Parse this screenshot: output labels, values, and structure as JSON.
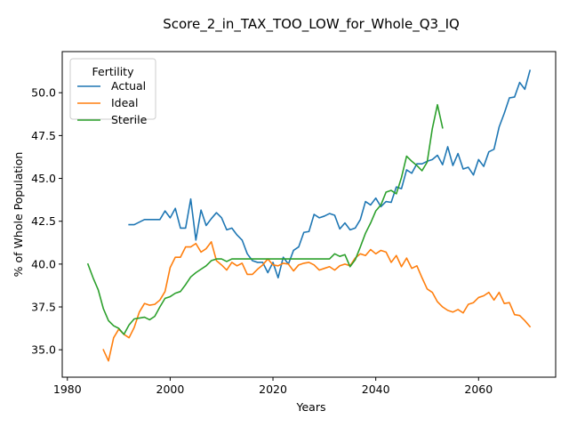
{
  "chart_data": {
    "type": "line",
    "title": "Score_2_in_TAX_TOO_LOW_for_Whole_Q3_IQ",
    "xlabel": "Years",
    "ylabel": "% of Whole Population",
    "xlim": [
      1979,
      2075
    ],
    "ylim": [
      33.4,
      52.4
    ],
    "xticks": [
      1980,
      2000,
      2020,
      2040,
      2060
    ],
    "yticks": [
      35.0,
      37.5,
      40.0,
      42.5,
      45.0,
      47.5,
      50.0
    ],
    "xtick_labels": [
      "1980",
      "2000",
      "2020",
      "2040",
      "2060"
    ],
    "ytick_labels": [
      "35.0",
      "37.5",
      "40.0",
      "42.5",
      "45.0",
      "47.5",
      "50.0"
    ],
    "grid": false,
    "legend": {
      "title": "Fertility",
      "placement": "upper-left"
    },
    "series": [
      {
        "name": "Actual",
        "color": "#1f77b4",
        "x": [
          1992,
          1993,
          1994,
          1995,
          1996,
          1997,
          1998,
          1999,
          2000,
          2001,
          2002,
          2003,
          2004,
          2005,
          2006,
          2007,
          2008,
          2009,
          2010,
          2011,
          2012,
          2013,
          2014,
          2015,
          2016,
          2017,
          2018,
          2019,
          2020,
          2021,
          2022,
          2023,
          2024,
          2025,
          2026,
          2027,
          2028,
          2029,
          2030,
          2031,
          2032,
          2033,
          2034,
          2035,
          2036,
          2037,
          2038,
          2039,
          2040,
          2041,
          2042,
          2043,
          2044,
          2045,
          2046,
          2047,
          2048,
          2049,
          2050,
          2051,
          2052,
          2053,
          2054,
          2055,
          2056,
          2057,
          2058,
          2059,
          2060,
          2061,
          2062,
          2063,
          2064,
          2065,
          2066,
          2067,
          2068,
          2069,
          2070
        ],
        "values": [
          42.3,
          42.3,
          42.45,
          42.6,
          42.6,
          42.6,
          42.6,
          43.1,
          42.7,
          43.25,
          42.1,
          42.1,
          43.8,
          41.4,
          43.15,
          42.25,
          42.65,
          43.0,
          42.7,
          42.0,
          42.1,
          41.7,
          41.4,
          40.6,
          40.2,
          40.1,
          40.1,
          39.5,
          40.1,
          39.2,
          40.4,
          40.0,
          40.8,
          41.0,
          41.85,
          41.9,
          42.9,
          42.7,
          42.8,
          42.95,
          42.85,
          42.05,
          42.4,
          42.0,
          42.1,
          42.6,
          43.65,
          43.45,
          43.85,
          43.35,
          43.65,
          43.6,
          44.5,
          44.4,
          45.5,
          45.3,
          45.85,
          45.85,
          46.0,
          46.1,
          46.35,
          45.8,
          46.85,
          45.75,
          46.45,
          45.55,
          45.65,
          45.2,
          46.1,
          45.7,
          46.55,
          46.7,
          48.0,
          48.8,
          49.7,
          49.75,
          50.6,
          50.2,
          51.3
        ]
      },
      {
        "name": "Ideal",
        "color": "#ff7f0e",
        "x": [
          1987,
          1988,
          1989,
          1990,
          1991,
          1992,
          1993,
          1994,
          1995,
          1996,
          1997,
          1998,
          1999,
          2000,
          2001,
          2002,
          2003,
          2004,
          2005,
          2006,
          2007,
          2008,
          2009,
          2010,
          2011,
          2012,
          2013,
          2014,
          2015,
          2016,
          2017,
          2018,
          2019,
          2020,
          2021,
          2022,
          2023,
          2024,
          2025,
          2026,
          2027,
          2028,
          2029,
          2030,
          2031,
          2032,
          2033,
          2034,
          2035,
          2036,
          2037,
          2038,
          2039,
          2040,
          2041,
          2042,
          2043,
          2044,
          2045,
          2046,
          2047,
          2048,
          2049,
          2050,
          2051,
          2052,
          2053,
          2054,
          2055,
          2056,
          2057,
          2058,
          2059,
          2060,
          2061,
          2062,
          2063,
          2064,
          2065,
          2066,
          2067,
          2068,
          2069,
          2070
        ],
        "values": [
          35.0,
          34.35,
          35.7,
          36.2,
          35.9,
          35.7,
          36.3,
          37.2,
          37.7,
          37.6,
          37.65,
          37.9,
          38.4,
          39.8,
          40.4,
          40.4,
          41.0,
          41.0,
          41.2,
          40.7,
          40.9,
          41.3,
          40.2,
          39.95,
          39.65,
          40.1,
          39.9,
          40.05,
          39.4,
          39.4,
          39.7,
          39.95,
          40.3,
          39.95,
          39.9,
          40.05,
          40.0,
          39.6,
          39.95,
          40.05,
          40.1,
          39.95,
          39.65,
          39.75,
          39.85,
          39.65,
          39.9,
          40.0,
          39.9,
          40.35,
          40.6,
          40.5,
          40.85,
          40.6,
          40.8,
          40.7,
          40.1,
          40.5,
          39.85,
          40.35,
          39.75,
          39.9,
          39.2,
          38.55,
          38.35,
          37.8,
          37.5,
          37.3,
          37.2,
          37.35,
          37.15,
          37.65,
          37.75,
          38.05,
          38.15,
          38.35,
          37.9,
          38.35,
          37.7,
          37.75,
          37.05,
          37.0,
          36.7,
          36.35
        ]
      },
      {
        "name": "Sterile",
        "color": "#2ca02c",
        "x": [
          1984,
          1985,
          1986,
          1987,
          1988,
          1989,
          1990,
          1991,
          1992,
          1993,
          1994,
          1995,
          1996,
          1997,
          1998,
          1999,
          2000,
          2001,
          2002,
          2003,
          2004,
          2005,
          2006,
          2007,
          2008,
          2009,
          2010,
          2011,
          2012,
          2013,
          2014,
          2015,
          2016,
          2017,
          2018,
          2019,
          2020,
          2021,
          2022,
          2023,
          2024,
          2025,
          2026,
          2027,
          2028,
          2029,
          2030,
          2031,
          2032,
          2033,
          2034,
          2035,
          2036,
          2037,
          2038,
          2039,
          2040,
          2041,
          2042,
          2043,
          2044,
          2045,
          2046,
          2047,
          2048,
          2049,
          2050,
          2051,
          2052,
          2053
        ],
        "values": [
          40.0,
          39.2,
          38.5,
          37.4,
          36.7,
          36.4,
          36.25,
          35.9,
          36.45,
          36.8,
          36.85,
          36.9,
          36.75,
          36.95,
          37.5,
          38.0,
          38.1,
          38.3,
          38.4,
          38.8,
          39.25,
          39.5,
          39.7,
          39.9,
          40.2,
          40.3,
          40.3,
          40.15,
          40.3,
          40.3,
          40.3,
          40.3,
          40.3,
          40.3,
          40.3,
          40.3,
          40.3,
          40.3,
          40.3,
          40.3,
          40.3,
          40.3,
          40.3,
          40.3,
          40.3,
          40.3,
          40.3,
          40.3,
          40.6,
          40.45,
          40.55,
          39.85,
          40.25,
          41.0,
          41.8,
          42.4,
          43.1,
          43.45,
          44.2,
          44.3,
          44.1,
          45.05,
          46.3,
          46.0,
          45.75,
          45.45,
          45.95,
          47.9,
          49.3,
          47.95
        ]
      }
    ]
  }
}
